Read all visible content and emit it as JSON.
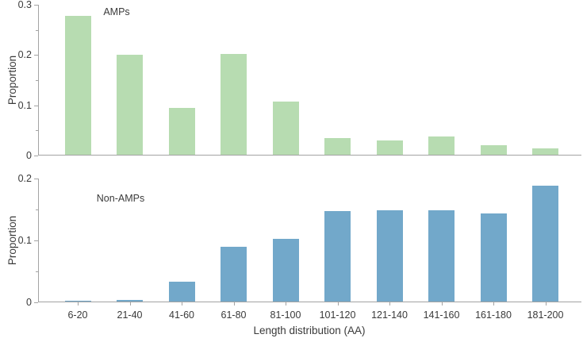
{
  "figure": {
    "xlabel": "Length distribution (AA)",
    "axis_color": "#a3a3a3",
    "text_color": "#3a3a3a",
    "background": "#ffffff"
  },
  "chart_data": [
    {
      "type": "bar",
      "annotation": "AMPs",
      "ylabel": "Proportion",
      "categories": [
        "6-20",
        "21-40",
        "41-60",
        "61-80",
        "81-100",
        "101-120",
        "121-140",
        "141-160",
        "161-180",
        "181-200"
      ],
      "values": [
        0.277,
        0.199,
        0.093,
        0.2,
        0.106,
        0.033,
        0.028,
        0.036,
        0.019,
        0.013
      ],
      "ylim": [
        0,
        0.3
      ],
      "yticks": [
        0,
        0.1,
        0.2,
        0.3
      ],
      "ytick_labels": [
        "0",
        "0.1",
        "0.2",
        "0.3"
      ],
      "minor_yticks": [
        0.05,
        0.15,
        0.25
      ],
      "bar_color": "#b7dcb1",
      "grid": false,
      "legend": "none",
      "show_x_tick_labels": false
    },
    {
      "type": "bar",
      "annotation": "Non-AMPs",
      "ylabel": "Proportion",
      "categories": [
        "6-20",
        "21-40",
        "41-60",
        "61-80",
        "81-100",
        "101-120",
        "121-140",
        "141-160",
        "161-180",
        "181-200"
      ],
      "values": [
        0.001,
        0.002,
        0.032,
        0.088,
        0.101,
        0.146,
        0.147,
        0.148,
        0.142,
        0.187
      ],
      "ylim": [
        0,
        0.2
      ],
      "yticks": [
        0,
        0.1,
        0.2
      ],
      "ytick_labels": [
        "0",
        "0.1",
        "0.2"
      ],
      "minor_yticks": [
        0.05,
        0.15
      ],
      "bar_color": "#72a8ca",
      "grid": false,
      "legend": "none",
      "show_x_tick_labels": true
    }
  ]
}
